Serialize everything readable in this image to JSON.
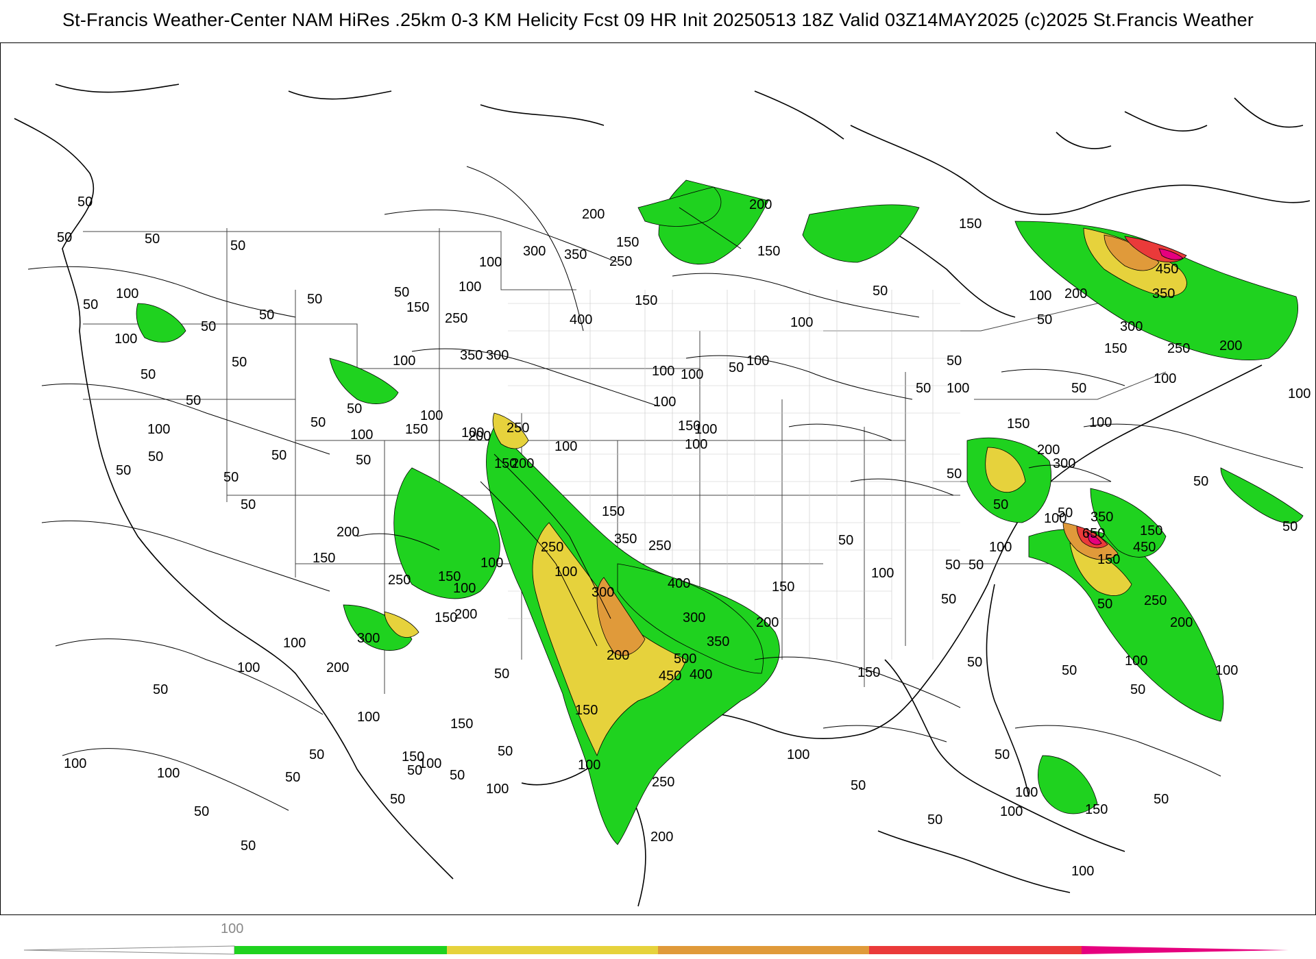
{
  "header": {
    "title": "St-Francis Weather-Center NAM HiRes .25km 0-3 KM Helicity Fcst 09 HR Init 20250513 18Z  Valid 03Z14MAY2025    (c)2025 St.Francis Weather"
  },
  "map": {
    "field": "0-3 KM Helicity",
    "contour_labels": [
      "50",
      "100",
      "150",
      "200",
      "250",
      "300",
      "350",
      "400",
      "450",
      "500",
      "650"
    ],
    "fill_colors": {
      "low": "#1fd21f",
      "mid_low": "#e6d23c",
      "mid": "#e09a3a",
      "high": "#ea3a3a",
      "extreme": "#e6007e",
      "contour": "#000000",
      "county_lines": "#bbbbbb",
      "state_lines": "#444444"
    }
  },
  "legend": {
    "tick_label": "100",
    "segments": [
      {
        "color": "#ffffff"
      },
      {
        "color": "#1fd21f"
      },
      {
        "color": "#e6d23c"
      },
      {
        "color": "#e09a3a"
      },
      {
        "color": "#ea3a3a"
      },
      {
        "color": "#e6007e"
      }
    ]
  }
}
